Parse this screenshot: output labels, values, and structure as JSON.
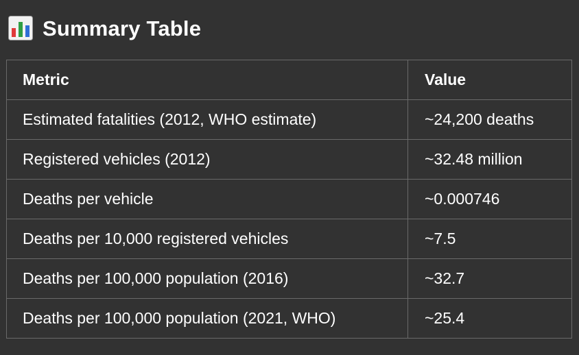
{
  "heading": {
    "icon": "bar-chart-icon",
    "title": "Summary Table"
  },
  "table": {
    "columns": [
      "Metric",
      "Value"
    ],
    "rows": [
      {
        "metric": "Estimated fatalities (2012, WHO estimate)",
        "value": "~24,200 deaths"
      },
      {
        "metric": "Registered vehicles (2012)",
        "value": "~32.48 million"
      },
      {
        "metric": "Deaths per vehicle",
        "value": "~0.000746"
      },
      {
        "metric": "Deaths per 10,000 registered vehicles",
        "value": "~7.5"
      },
      {
        "metric": "Deaths per 100,000 population (2016)",
        "value": "~32.7"
      },
      {
        "metric": "Deaths per 100,000 population (2021, WHO)",
        "value": "~25.4"
      }
    ]
  }
}
